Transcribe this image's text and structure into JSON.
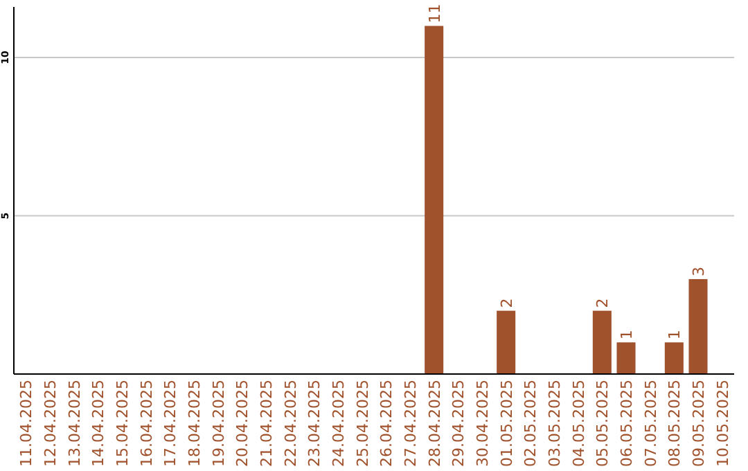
{
  "chart_data": {
    "type": "bar",
    "categories": [
      "11.04.2025",
      "12.04.2025",
      "13.04.2025",
      "14.04.2025",
      "15.04.2025",
      "16.04.2025",
      "17.04.2025",
      "18.04.2025",
      "19.04.2025",
      "20.04.2025",
      "21.04.2025",
      "22.04.2025",
      "23.04.2025",
      "24.04.2025",
      "25.04.2025",
      "26.04.2025",
      "27.04.2025",
      "28.04.2025",
      "29.04.2025",
      "30.04.2025",
      "01.05.2025",
      "02.05.2025",
      "03.05.2025",
      "04.05.2025",
      "05.05.2025",
      "06.05.2025",
      "07.05.2025",
      "08.05.2025",
      "09.05.2025",
      "10.05.2025"
    ],
    "values": [
      0,
      0,
      0,
      0,
      0,
      0,
      0,
      0,
      0,
      0,
      0,
      0,
      0,
      0,
      0,
      0,
      0,
      11,
      0,
      0,
      2,
      0,
      0,
      0,
      2,
      1,
      0,
      1,
      3,
      0
    ],
    "value_labels": [
      null,
      null,
      null,
      null,
      null,
      null,
      null,
      null,
      null,
      null,
      null,
      null,
      null,
      null,
      null,
      null,
      null,
      "11",
      null,
      null,
      "2",
      null,
      null,
      null,
      "2",
      "1",
      null,
      "1",
      "3",
      null
    ],
    "color": "#a0522d",
    "ylim": [
      0,
      11.6
    ],
    "yticks": [
      5,
      10
    ],
    "grid": "y"
  }
}
